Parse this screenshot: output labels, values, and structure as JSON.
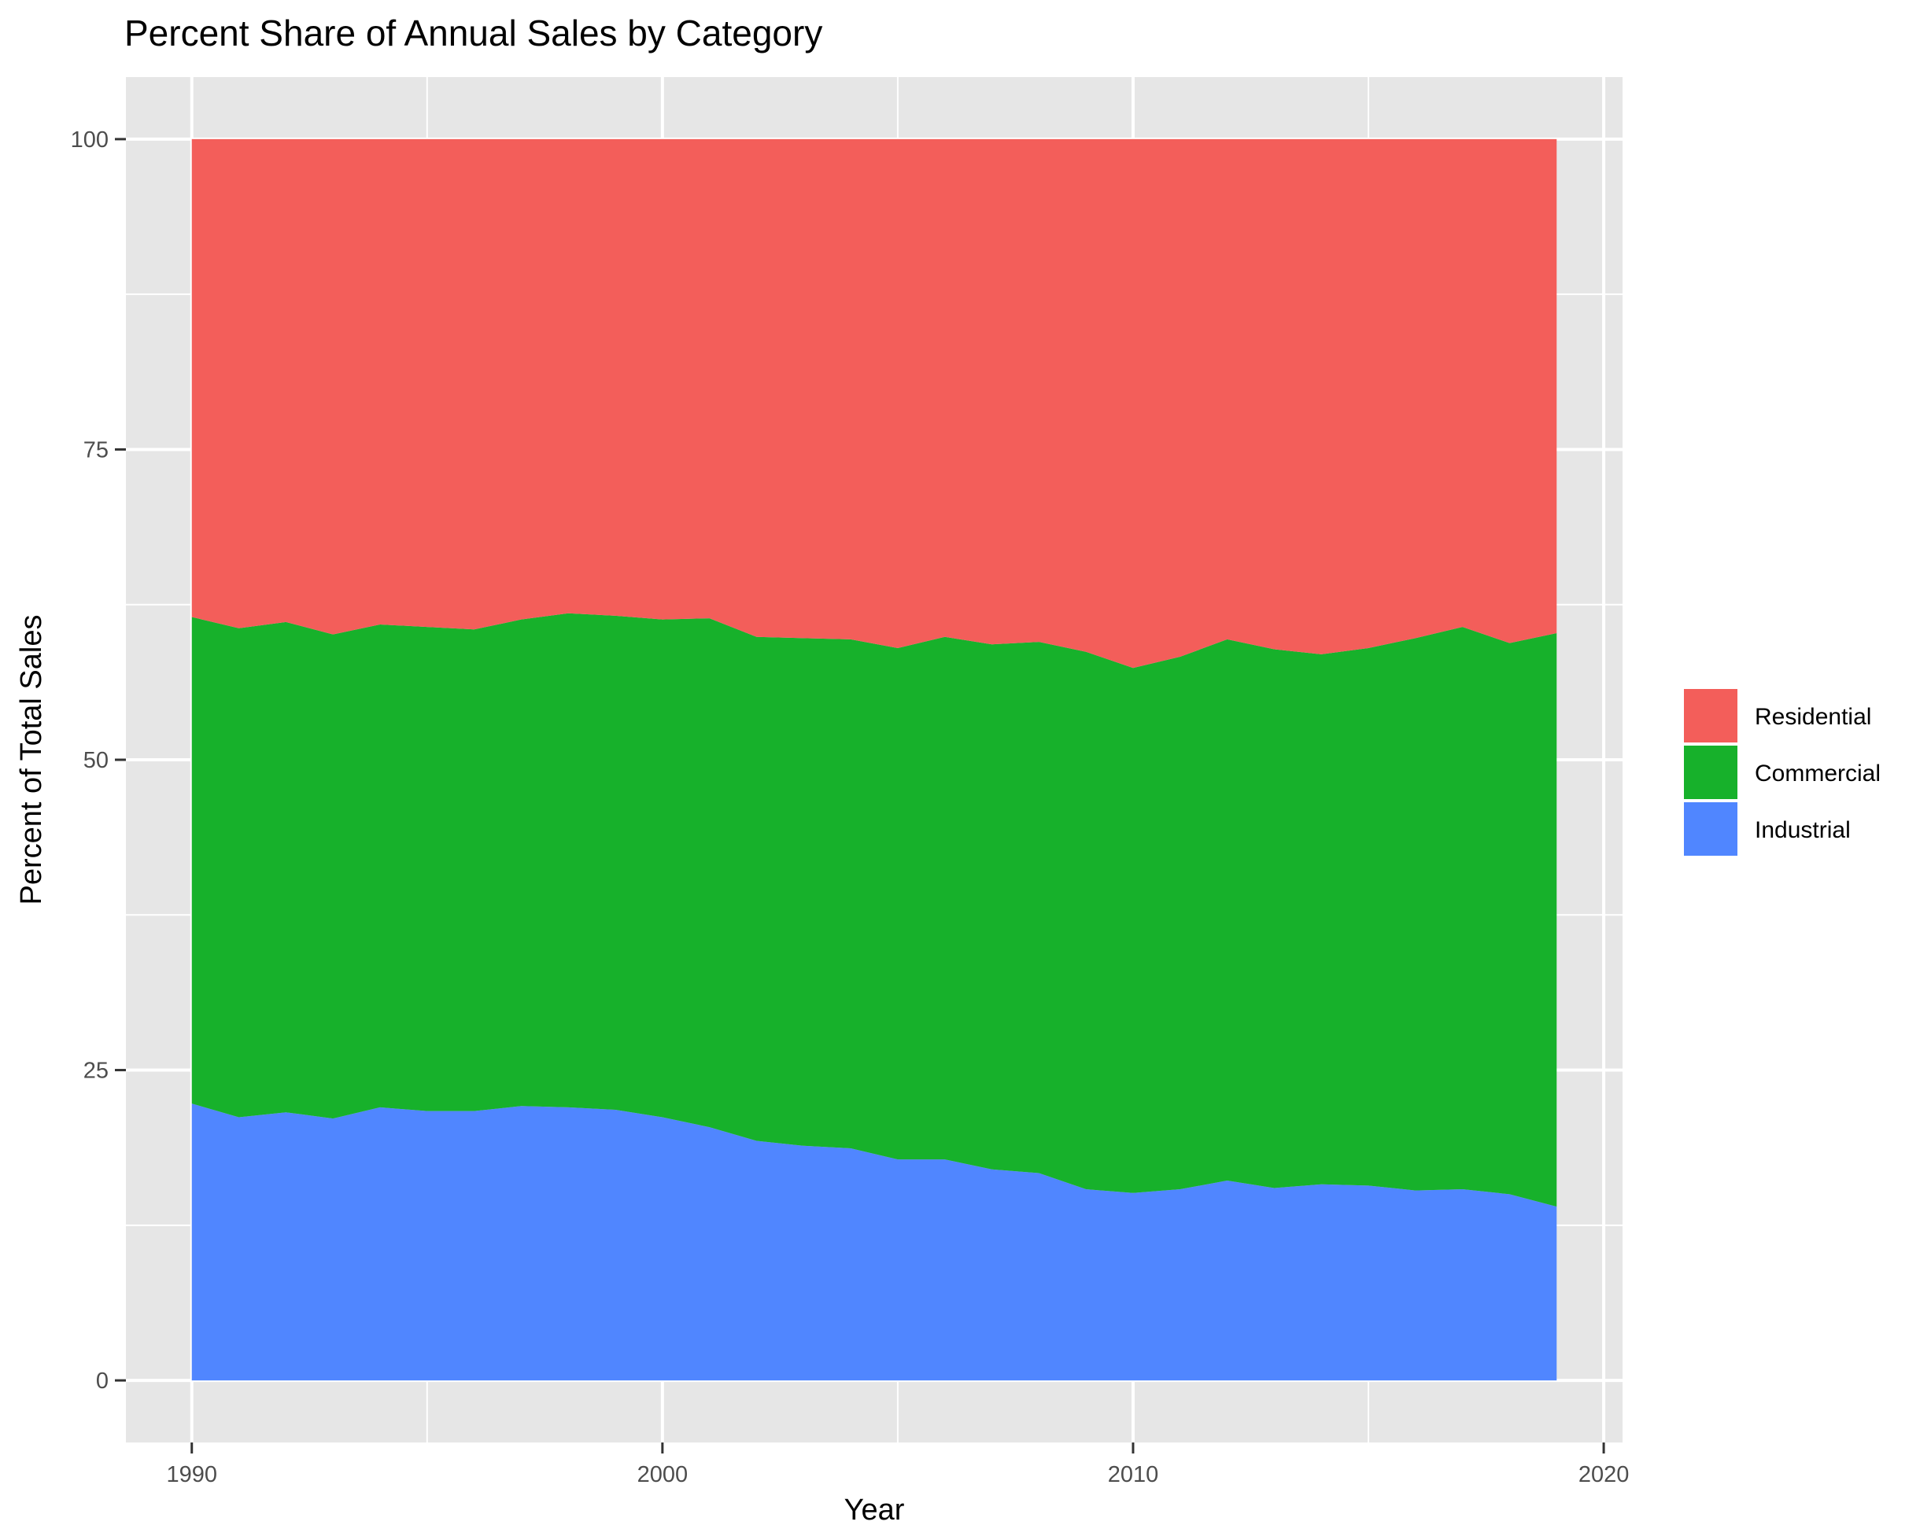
{
  "chart_data": {
    "type": "area",
    "stacked": true,
    "title": "Percent Share of Annual Sales by Category",
    "xlabel": "Year",
    "ylabel": "Percent of Total Sales",
    "xlim": [
      1988.6,
      2020.4
    ],
    "ylim": [
      -5,
      105
    ],
    "x_ticks": [
      1990,
      2000,
      2010,
      2020
    ],
    "y_ticks": [
      0,
      25,
      50,
      75,
      100
    ],
    "grid": true,
    "legend_position": "right",
    "x": [
      1990,
      1991,
      1992,
      1993,
      1994,
      1995,
      1996,
      1997,
      1998,
      1999,
      2000,
      2001,
      2002,
      2003,
      2004,
      2005,
      2006,
      2007,
      2008,
      2009,
      2010,
      2011,
      2012,
      2013,
      2014,
      2015,
      2016,
      2017,
      2018,
      2019
    ],
    "series": [
      {
        "name": "Residential",
        "color": "#F35E5A",
        "values": [
          38.5,
          39.4,
          38.9,
          39.9,
          39.1,
          39.3,
          39.5,
          38.7,
          38.2,
          38.4,
          38.7,
          38.6,
          40.1,
          40.2,
          40.3,
          41.0,
          40.1,
          40.7,
          40.5,
          41.3,
          42.6,
          41.7,
          40.3,
          41.1,
          41.5,
          41.0,
          40.2,
          39.3,
          40.6,
          39.8
        ]
      },
      {
        "name": "Commercial",
        "color": "#17B12B",
        "values": [
          39.2,
          39.4,
          39.5,
          39.0,
          38.9,
          39.0,
          38.8,
          39.2,
          39.8,
          39.8,
          40.1,
          41.0,
          40.6,
          40.9,
          41.0,
          41.2,
          42.1,
          42.3,
          42.8,
          43.3,
          42.3,
          42.9,
          43.6,
          43.4,
          42.7,
          43.3,
          44.5,
          45.3,
          44.4,
          46.2
        ]
      },
      {
        "name": "Industrial",
        "color": "#5086FF",
        "values": [
          22.3,
          21.2,
          21.6,
          21.1,
          22.0,
          21.7,
          21.7,
          22.1,
          22.0,
          21.8,
          21.2,
          20.4,
          19.3,
          18.9,
          18.7,
          17.8,
          17.8,
          17.0,
          16.7,
          15.4,
          15.1,
          15.4,
          16.1,
          15.5,
          15.8,
          15.7,
          15.3,
          15.4,
          15.0,
          14.0
        ]
      }
    ]
  }
}
